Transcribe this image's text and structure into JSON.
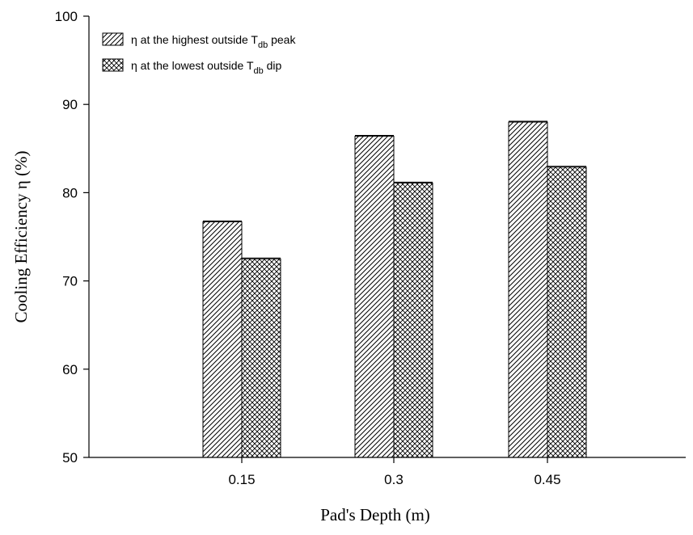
{
  "chart_data": {
    "type": "bar",
    "categories": [
      "0.15",
      "0.3",
      "0.45"
    ],
    "series": [
      {
        "name": "η at the highest outside Tdb peak",
        "legend_main": "η  at the highest outside T",
        "legend_sub": "db",
        "legend_tail": " peak",
        "pattern": "diagonal-hatch",
        "values": [
          76.7,
          86.4,
          88.0
        ]
      },
      {
        "name": "η at the lowest outside Tdb dip",
        "legend_main": "η  at the lowest outside T",
        "legend_sub": "db",
        "legend_tail": " dip",
        "pattern": "crosshatch",
        "values": [
          72.5,
          81.1,
          82.9
        ]
      }
    ],
    "xlabel": "Pad's Depth (m)",
    "ylabel": "Cooling Efficiency η (%)",
    "ylim": [
      50,
      100
    ],
    "yticks": [
      "50",
      "60",
      "70",
      "80",
      "90",
      "100"
    ],
    "grid": false,
    "legend_position": "top-left",
    "colors": {
      "bar_fill": "#ffffff",
      "bar_stroke": "#000000",
      "hatch": "#000000"
    }
  }
}
